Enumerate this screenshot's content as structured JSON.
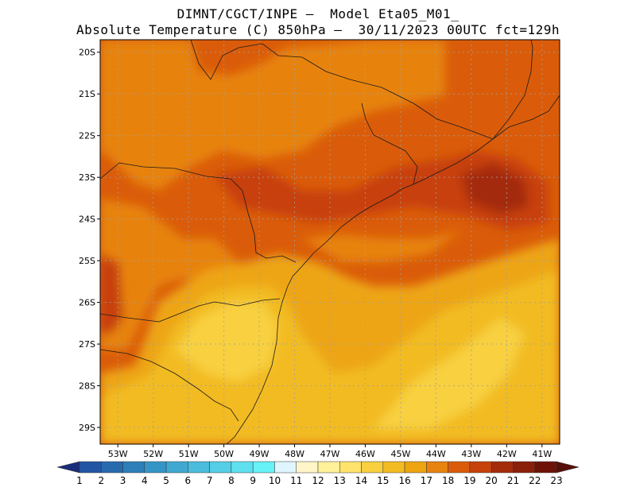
{
  "header": {
    "line1": "DIMNT/CGCT/INPE –  Model Eta05_M01_",
    "line2": "Absolute Temperature (C) 850hPa –  30/11/2023 00UTC fct=129h"
  },
  "map": {
    "lat_labels": [
      "20S",
      "21S",
      "22S",
      "23S",
      "24S",
      "25S",
      "26S",
      "27S",
      "28S",
      "29S"
    ],
    "lon_labels": [
      "53W",
      "52W",
      "51W",
      "50W",
      "49W",
      "48W",
      "47W",
      "46W",
      "45W",
      "44W",
      "43W",
      "42W",
      "41W"
    ],
    "lon_range": [
      -53.5,
      -40.5
    ],
    "lat_range": [
      -29.4,
      -19.7
    ],
    "grid": true
  },
  "colorbar": {
    "labels": [
      "1",
      "2",
      "3",
      "4",
      "5",
      "6",
      "7",
      "8",
      "9",
      "10",
      "11",
      "12",
      "13",
      "14",
      "15",
      "16",
      "17",
      "18",
      "19",
      "20",
      "21",
      "22",
      "23"
    ],
    "colors": [
      "#1f3d8f",
      "#2355a5",
      "#276aae",
      "#2c7fb8",
      "#3595c6",
      "#40a8d1",
      "#4bbcdc",
      "#55cee6",
      "#5ee0ef",
      "#66f2f7",
      "#e0f6ff",
      "#fff5c8",
      "#fff09a",
      "#ffe36a",
      "#f8d040",
      "#f2bb22",
      "#eda512",
      "#e78310",
      "#da5c0a",
      "#c7410a",
      "#a42c0a",
      "#8a1f0a",
      "#6e1208"
    ],
    "left_arrow_color": "#1a2d7a",
    "right_arrow_color": "#580e08"
  }
}
